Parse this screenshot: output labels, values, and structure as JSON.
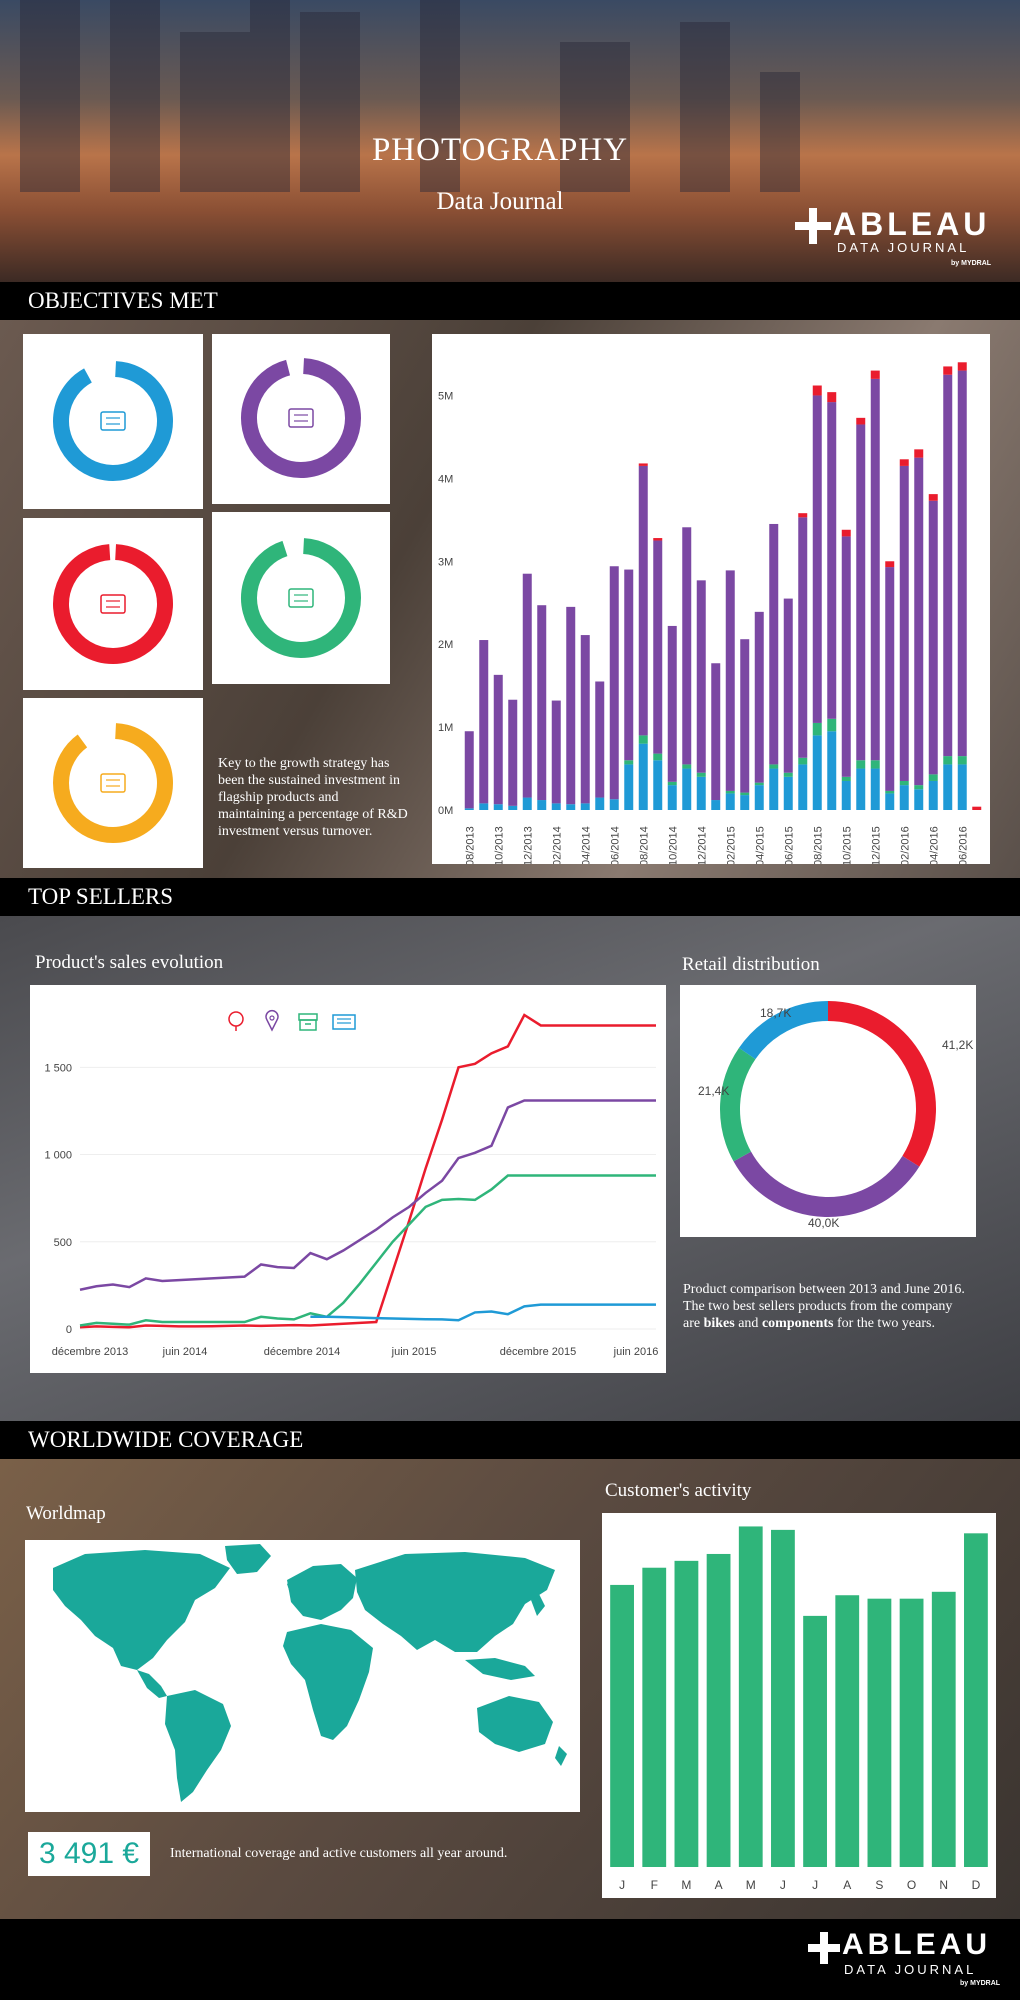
{
  "header": {
    "title": "PHOTOGRAPHY",
    "subtitle": "Data Journal"
  },
  "logo": {
    "name": "ABLEAU",
    "tagline": "DATA JOURNAL",
    "by": "by MYDRAL"
  },
  "sections": {
    "objectives": "OBJECTIVES MET",
    "top_sellers": "TOP SELLERS",
    "worldwide": "WORLDWIDE COVERAGE"
  },
  "colors": {
    "blue": "#1f9ad6",
    "purple": "#7b48a3",
    "red": "#ea1c2d",
    "green": "#2fb57a",
    "yellow": "#f6ab1e",
    "teal": "#1aa89a"
  },
  "objectives": {
    "donuts": [
      {
        "icon": "newspaper-icon",
        "color": "#1f9ad6",
        "fraction": 0.92
      },
      {
        "icon": "coin-icon",
        "color": "#7b48a3",
        "fraction": 0.96
      },
      {
        "icon": "lightbulb-icon",
        "color": "#ea1c2d",
        "fraction": 0.99
      },
      {
        "icon": "storage-box-icon",
        "color": "#2fb57a",
        "fraction": 0.95
      },
      {
        "icon": "magnifier-icon",
        "color": "#f6ab1e",
        "fraction": 0.9
      }
    ],
    "note": "Key to the growth strategy has been the sustained investment in flagship products and maintaining a percentage of R&D investment versus turnover."
  },
  "top_sellers": {
    "line_title": "Product's sales evolution",
    "donut_title": "Retail distribution",
    "note_html": "Product comparison between 2013 and June 2016. The two best sellers products from the company are <b>bikes</b> and <b>components</b> for the two years."
  },
  "worldwide": {
    "map_title": "Worldmap",
    "activity_title": "Customer's activity",
    "kpi": "3 491 €",
    "note": "International coverage and active customers all year around."
  },
  "chart_data": [
    {
      "id": "monthly-stacked",
      "type": "bar",
      "categories": [
        "08/2013",
        "09/2013",
        "10/2013",
        "11/2013",
        "12/2013",
        "01/2014",
        "02/2014",
        "03/2014",
        "04/2014",
        "05/2014",
        "06/2014",
        "07/2014",
        "08/2014",
        "09/2014",
        "10/2014",
        "11/2014",
        "12/2014",
        "01/2015",
        "02/2015",
        "03/2015",
        "04/2015",
        "05/2015",
        "06/2015",
        "07/2015",
        "08/2015",
        "09/2015",
        "10/2015",
        "11/2015",
        "12/2015",
        "01/2016",
        "02/2016",
        "03/2016",
        "04/2016",
        "05/2016",
        "06/2016",
        "07/2016"
      ],
      "tick_labels": [
        "08/2013",
        "10/2013",
        "12/2013",
        "02/2014",
        "04/2014",
        "06/2014",
        "08/2014",
        "10/2014",
        "12/2014",
        "02/2015",
        "04/2015",
        "06/2015",
        "08/2015",
        "10/2015",
        "12/2015",
        "02/2016",
        "04/2016",
        "06/2016"
      ],
      "y_ticks": [
        "0M",
        "1M",
        "2M",
        "3M",
        "4M",
        "5M"
      ],
      "ylim": [
        0,
        5500000
      ],
      "series": [
        {
          "color": "#1f9ad6",
          "values": [
            0.02,
            0.08,
            0.07,
            0.05,
            0.15,
            0.12,
            0.08,
            0.07,
            0.08,
            0.15,
            0.13,
            0.55,
            0.8,
            0.6,
            0.3,
            0.5,
            0.4,
            0.12,
            0.2,
            0.18,
            0.3,
            0.5,
            0.4,
            0.55,
            0.9,
            0.95,
            0.35,
            0.5,
            0.5,
            0.2,
            0.3,
            0.25,
            0.35,
            0.55,
            0.55,
            0.0
          ]
        },
        {
          "color": "#2fb57a",
          "values": [
            0.0,
            0.0,
            0.0,
            0.0,
            0.0,
            0.0,
            0.0,
            0.0,
            0.0,
            0.0,
            0.0,
            0.05,
            0.1,
            0.08,
            0.04,
            0.05,
            0.05,
            0.0,
            0.03,
            0.03,
            0.03,
            0.05,
            0.05,
            0.08,
            0.15,
            0.15,
            0.05,
            0.1,
            0.1,
            0.03,
            0.05,
            0.05,
            0.08,
            0.1,
            0.1,
            0.0
          ]
        },
        {
          "color": "#7b48a3",
          "values": [
            0.93,
            1.97,
            1.56,
            1.28,
            2.7,
            2.35,
            1.24,
            2.38,
            2.03,
            1.4,
            2.81,
            2.3,
            3.25,
            2.57,
            1.88,
            2.86,
            2.32,
            1.65,
            2.66,
            1.85,
            2.06,
            2.9,
            2.1,
            2.9,
            3.95,
            3.82,
            2.9,
            4.05,
            4.6,
            2.7,
            3.8,
            3.95,
            3.3,
            4.6,
            4.65,
            0.0
          ]
        },
        {
          "color": "#ea1c2d",
          "values": [
            0.0,
            0.0,
            0.0,
            0.0,
            0.0,
            0.0,
            0.0,
            0.0,
            0.0,
            0.0,
            0.0,
            0.0,
            0.03,
            0.03,
            0.0,
            0.0,
            0.0,
            0.0,
            0.0,
            0.0,
            0.0,
            0.0,
            0.0,
            0.05,
            0.12,
            0.12,
            0.08,
            0.08,
            0.1,
            0.07,
            0.08,
            0.1,
            0.08,
            0.1,
            0.1,
            0.04
          ]
        }
      ]
    },
    {
      "id": "sales-evolution",
      "type": "line",
      "x_tick_labels": [
        "décembre 2013",
        "juin 2014",
        "décembre 2014",
        "juin 2015",
        "décembre 2015",
        "juin 2016"
      ],
      "y_ticks": [
        "0",
        "500",
        "1 000",
        "1 500"
      ],
      "ylim": [
        0,
        1800
      ],
      "legend_icons": [
        "lightbulb-icon",
        "location-pin-icon",
        "storage-box-icon",
        "newspaper-icon"
      ],
      "x": [
        0,
        1,
        2,
        3,
        4,
        5,
        6,
        7,
        8,
        9,
        10,
        11,
        12,
        13,
        14,
        15,
        16,
        17,
        18,
        19,
        20,
        21,
        22,
        23,
        24,
        25,
        26,
        27,
        28,
        29,
        30,
        31,
        32,
        33,
        34,
        35
      ],
      "series": [
        {
          "color": "#ea1c2d",
          "values": [
            10,
            15,
            12,
            10,
            20,
            18,
            15,
            15,
            16,
            18,
            20,
            18,
            20,
            22,
            20,
            25,
            30,
            35,
            40,
            330,
            620,
            920,
            1200,
            1500,
            1520,
            1580,
            1620,
            1800,
            1740,
            1740,
            1740,
            1740,
            1740,
            1740,
            1740,
            1740
          ]
        },
        {
          "color": "#7b48a3",
          "values": [
            225,
            245,
            255,
            240,
            290,
            275,
            280,
            285,
            290,
            295,
            300,
            370,
            355,
            350,
            435,
            400,
            450,
            510,
            570,
            640,
            700,
            780,
            850,
            980,
            1010,
            1050,
            1270,
            1310,
            1310,
            1310,
            1310,
            1310,
            1310,
            1310,
            1310,
            1310
          ]
        },
        {
          "color": "#2fb57a",
          "values": [
            20,
            35,
            30,
            25,
            50,
            40,
            40,
            40,
            40,
            40,
            40,
            70,
            60,
            55,
            90,
            70,
            150,
            260,
            380,
            500,
            600,
            700,
            740,
            745,
            740,
            800,
            880,
            880,
            880,
            880,
            880,
            880,
            880,
            880,
            880,
            880
          ]
        },
        {
          "color": "#1f9ad6",
          "values": [
            null,
            null,
            null,
            null,
            null,
            null,
            null,
            null,
            null,
            null,
            null,
            null,
            null,
            null,
            70,
            70,
            68,
            65,
            62,
            60,
            58,
            56,
            55,
            50,
            95,
            100,
            85,
            130,
            140,
            140,
            140,
            140,
            140,
            140,
            140,
            140
          ]
        }
      ]
    },
    {
      "id": "retail-distribution",
      "type": "pie",
      "labels": [
        "41,2K",
        "40,0K",
        "21,4K",
        "18,7K"
      ],
      "values": [
        41.2,
        40.0,
        21.4,
        18.7
      ],
      "colors": [
        "#ea1c2d",
        "#7b48a3",
        "#2fb57a",
        "#1f9ad6"
      ]
    },
    {
      "id": "customer-activity",
      "type": "bar",
      "categories": [
        "J",
        "F",
        "M",
        "A",
        "M",
        "J",
        "J",
        "A",
        "S",
        "O",
        "N",
        "D"
      ],
      "values": [
        82,
        87,
        89,
        91,
        99,
        98,
        73,
        79,
        78,
        78,
        80,
        97
      ],
      "ylim": [
        0,
        100
      ],
      "color": "#2fb57a"
    }
  ]
}
